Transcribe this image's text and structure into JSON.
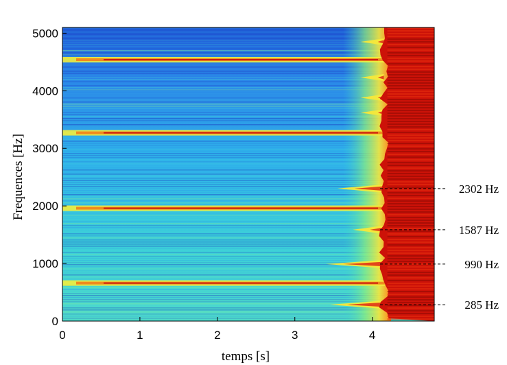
{
  "chart_data": {
    "type": "heatmap",
    "xlabel": "temps [s]",
    "ylabel": "Frequences [Hz]",
    "xlim": [
      0,
      4.8
    ],
    "ylim": [
      0,
      5100
    ],
    "x_ticks": [
      "0",
      "1",
      "2",
      "3",
      "4"
    ],
    "y_ticks": [
      "0",
      "1000",
      "2000",
      "3000",
      "4000",
      "5000"
    ],
    "colormap": "jet",
    "saturation_onset_s": 4.15,
    "persistent_bands_hz": [
      660,
      1960,
      3270,
      4540
    ],
    "late_onset_bands": [
      {
        "freq_hz": 2302,
        "label": "2302 Hz",
        "onset_s": 3.55
      },
      {
        "freq_hz": 1587,
        "label": "1587 Hz",
        "onset_s": 3.75
      },
      {
        "freq_hz": 990,
        "label": "990 Hz",
        "onset_s": 3.4
      },
      {
        "freq_hz": 285,
        "label": "285 Hz",
        "onset_s": 3.45
      }
    ],
    "upper_late_bands_hz": [
      3620,
      3880,
      4230,
      4850
    ]
  }
}
